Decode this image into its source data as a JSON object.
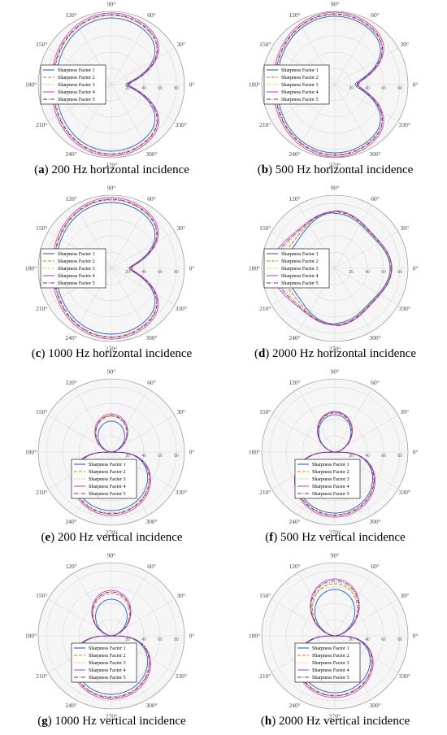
{
  "styles": {
    "series": [
      {
        "color": "#1f5fd6",
        "dash": ""
      },
      {
        "color": "#e07020",
        "dash": "4,2"
      },
      {
        "color": "#a8b820",
        "dash": "1.2,1.8"
      },
      {
        "color": "#c848c8",
        "dash": ""
      },
      {
        "color": "#6a2a8a",
        "dash": "5,1.5,1,1.5"
      }
    ]
  },
  "chart_data": [
    {
      "type": "polar",
      "label": "a",
      "caption": "200 Hz horizontal incidence",
      "angle_labels": [
        "90°",
        "60°",
        "30°",
        "0°",
        "330°",
        "300°",
        "270°",
        "240°",
        "210°",
        "180°",
        "150°",
        "120°"
      ],
      "radial_ticks": [
        "20",
        "40",
        "60",
        "80"
      ],
      "rlim": [
        0,
        90
      ],
      "legend_position": "center-left",
      "series": [
        {
          "name": "Sharpness Factor 1",
          "shape": "cardioid",
          "front": 18,
          "back": 68,
          "lobe": 82
        },
        {
          "name": "Sharpness Factor 2",
          "shape": "cardioid",
          "front": 20,
          "back": 71,
          "lobe": 85
        },
        {
          "name": "Sharpness Factor 3",
          "shape": "cardioid",
          "front": 21,
          "back": 72,
          "lobe": 86
        },
        {
          "name": "Sharpness Factor 4",
          "shape": "cardioid",
          "front": 22,
          "back": 74,
          "lobe": 88
        },
        {
          "name": "Sharpness Factor 5",
          "shape": "cardioid",
          "front": 21,
          "back": 72,
          "lobe": 86
        }
      ]
    },
    {
      "type": "polar",
      "label": "b",
      "caption": "500 Hz horizontal incidence",
      "angle_labels": [
        "90°",
        "60°",
        "30°",
        "0°",
        "330°",
        "300°",
        "270°",
        "240°",
        "210°",
        "180°",
        "150°",
        "120°"
      ],
      "radial_ticks": [
        "20",
        "40",
        "60",
        "80"
      ],
      "rlim": [
        0,
        90
      ],
      "legend_position": "center-left",
      "series": [
        {
          "name": "Sharpness Factor 1",
          "shape": "cardioid",
          "front": 25,
          "back": 71,
          "lobe": 84
        },
        {
          "name": "Sharpness Factor 2",
          "shape": "cardioid",
          "front": 27,
          "back": 73,
          "lobe": 86
        },
        {
          "name": "Sharpness Factor 3",
          "shape": "cardioid",
          "front": 28,
          "back": 74,
          "lobe": 87
        },
        {
          "name": "Sharpness Factor 4",
          "shape": "cardioid",
          "front": 29,
          "back": 76,
          "lobe": 89
        },
        {
          "name": "Sharpness Factor 5",
          "shape": "cardioid",
          "front": 28,
          "back": 74,
          "lobe": 87
        }
      ]
    },
    {
      "type": "polar",
      "label": "c",
      "caption": "1000 Hz horizontal incidence",
      "angle_labels": [
        "90°",
        "60°",
        "30°",
        "0°",
        "330°",
        "300°",
        "270°",
        "240°",
        "210°",
        "180°",
        "150°",
        "120°"
      ],
      "radial_ticks": [
        "20",
        "40",
        "60",
        "80"
      ],
      "rlim": [
        0,
        90
      ],
      "legend_position": "center-left",
      "series": [
        {
          "name": "Sharpness Factor 1",
          "shape": "cardioid",
          "front": 22,
          "back": 68,
          "lobe": 81
        },
        {
          "name": "Sharpness Factor 2",
          "shape": "cardioid",
          "front": 23,
          "back": 70,
          "lobe": 84
        },
        {
          "name": "Sharpness Factor 3",
          "shape": "cardioid",
          "front": 24,
          "back": 71,
          "lobe": 85
        },
        {
          "name": "Sharpness Factor 4",
          "shape": "cardioid",
          "front": 25,
          "back": 73,
          "lobe": 87
        },
        {
          "name": "Sharpness Factor 5",
          "shape": "cardioid",
          "front": 24,
          "back": 71,
          "lobe": 85
        }
      ]
    },
    {
      "type": "polar",
      "label": "d",
      "caption": "2000 Hz horizontal incidence",
      "angle_labels": [
        "90°",
        "60°",
        "30°",
        "0°",
        "330°",
        "300°",
        "270°",
        "240°",
        "210°",
        "180°",
        "150°",
        "120°"
      ],
      "radial_ticks": [
        "20",
        "40",
        "60",
        "80"
      ],
      "rlim": [
        0,
        90
      ],
      "legend_position": "center-left",
      "series": [
        {
          "name": "Sharpness Factor 1",
          "shape": "clover",
          "front": 68,
          "back": 60,
          "lobe": 84
        },
        {
          "name": "Sharpness Factor 2",
          "shape": "clover",
          "front": 69,
          "back": 66,
          "lobe": 86
        },
        {
          "name": "Sharpness Factor 3",
          "shape": "clover",
          "front": 69,
          "back": 72,
          "lobe": 86
        },
        {
          "name": "Sharpness Factor 4",
          "shape": "clover",
          "front": 70,
          "back": 78,
          "lobe": 88
        },
        {
          "name": "Sharpness Factor 5",
          "shape": "clover",
          "front": 70,
          "back": 75,
          "lobe": 87
        }
      ]
    },
    {
      "type": "polar",
      "label": "e",
      "caption": "200 Hz vertical incidence",
      "angle_labels": [
        "90°",
        "60°",
        "30°",
        "0°",
        "330°",
        "300°",
        "270°",
        "240°",
        "210°",
        "180°",
        "150°",
        "120°"
      ],
      "radial_ticks": [
        "20",
        "40",
        "60",
        "80"
      ],
      "rlim": [
        0,
        90
      ],
      "legend_position": "bottom-center",
      "series": [
        {
          "name": "Sharpness Factor 1",
          "shape": "vertical",
          "front": 38,
          "back": 72,
          "lobe": 62
        },
        {
          "name": "Sharpness Factor 2",
          "shape": "vertical",
          "front": 44,
          "back": 75,
          "lobe": 65
        },
        {
          "name": "Sharpness Factor 3",
          "shape": "vertical",
          "front": 45,
          "back": 76,
          "lobe": 66
        },
        {
          "name": "Sharpness Factor 4",
          "shape": "vertical",
          "front": 47,
          "back": 78,
          "lobe": 68
        },
        {
          "name": "Sharpness Factor 5",
          "shape": "vertical",
          "front": 45,
          "back": 76,
          "lobe": 66
        }
      ]
    },
    {
      "type": "polar",
      "label": "f",
      "caption": "500 Hz vertical incidence",
      "angle_labels": [
        "90°",
        "60°",
        "30°",
        "0°",
        "330°",
        "300°",
        "270°",
        "240°",
        "210°",
        "180°",
        "150°",
        "120°"
      ],
      "radial_ticks": [
        "20",
        "40",
        "60",
        "80"
      ],
      "rlim": [
        0,
        90
      ],
      "legend_position": "bottom-center",
      "series": [
        {
          "name": "Sharpness Factor 1",
          "shape": "vertical",
          "front": 46,
          "back": 75,
          "lobe": 62
        },
        {
          "name": "Sharpness Factor 2",
          "shape": "vertical",
          "front": 48,
          "back": 77,
          "lobe": 64
        },
        {
          "name": "Sharpness Factor 3",
          "shape": "vertical",
          "front": 49,
          "back": 78,
          "lobe": 65
        },
        {
          "name": "Sharpness Factor 4",
          "shape": "vertical",
          "front": 50,
          "back": 80,
          "lobe": 67
        },
        {
          "name": "Sharpness Factor 5",
          "shape": "vertical",
          "front": 49,
          "back": 78,
          "lobe": 65
        }
      ]
    },
    {
      "type": "polar",
      "label": "g",
      "caption": "1000 Hz vertical incidence",
      "angle_labels": [
        "90°",
        "60°",
        "30°",
        "0°",
        "330°",
        "300°",
        "270°",
        "240°",
        "210°",
        "180°",
        "150°",
        "120°"
      ],
      "radial_ticks": [
        "20",
        "40",
        "60",
        "80"
      ],
      "rlim": [
        0,
        90
      ],
      "legend_position": "bottom-center",
      "series": [
        {
          "name": "Sharpness Factor 1",
          "shape": "vertical",
          "front": 45,
          "back": 72,
          "lobe": 60
        },
        {
          "name": "Sharpness Factor 2",
          "shape": "vertical",
          "front": 52,
          "back": 75,
          "lobe": 63
        },
        {
          "name": "Sharpness Factor 3",
          "shape": "vertical",
          "front": 54,
          "back": 76,
          "lobe": 64
        },
        {
          "name": "Sharpness Factor 4",
          "shape": "vertical",
          "front": 56,
          "back": 78,
          "lobe": 66
        },
        {
          "name": "Sharpness Factor 5",
          "shape": "vertical",
          "front": 54,
          "back": 76,
          "lobe": 64
        }
      ]
    },
    {
      "type": "polar",
      "label": "h",
      "caption": "2000 Hz vertical incidence",
      "angle_labels": [
        "90°",
        "60°",
        "30°",
        "0°",
        "330°",
        "300°",
        "270°",
        "240°",
        "210°",
        "180°",
        "150°",
        "120°"
      ],
      "radial_ticks": [
        "20",
        "40",
        "60",
        "80"
      ],
      "rlim": [
        0,
        90
      ],
      "legend_position": "bottom-center",
      "series": [
        {
          "name": "Sharpness Factor 1",
          "shape": "vertical",
          "front": 57,
          "back": 70,
          "lobe": 60
        },
        {
          "name": "Sharpness Factor 2",
          "shape": "vertical",
          "front": 64,
          "back": 73,
          "lobe": 62
        },
        {
          "name": "Sharpness Factor 3",
          "shape": "vertical",
          "front": 66,
          "back": 74,
          "lobe": 63
        },
        {
          "name": "Sharpness Factor 4",
          "shape": "vertical",
          "front": 70,
          "back": 76,
          "lobe": 65
        },
        {
          "name": "Sharpness Factor 5",
          "shape": "vertical",
          "front": 68,
          "back": 74,
          "lobe": 63
        }
      ]
    }
  ]
}
